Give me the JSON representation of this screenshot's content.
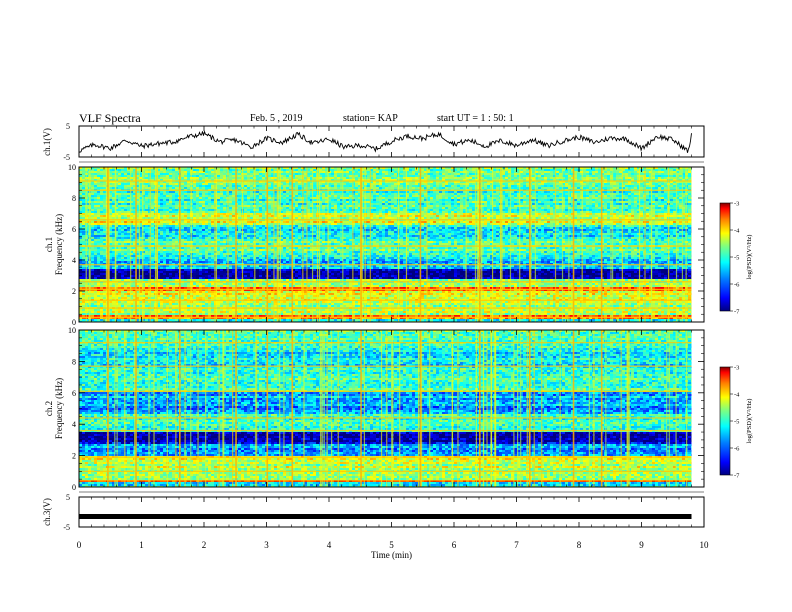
{
  "header": {
    "title": "VLF Spectra",
    "date": "Feb. 5 , 2019",
    "station": "station= KAP",
    "start": "start UT = 1 : 50: 1"
  },
  "colors": {
    "colormap": [
      "#00007f",
      "#0000ff",
      "#007fff",
      "#00ffff",
      "#7fff7f",
      "#ffff00",
      "#ff7f00",
      "#ff0000",
      "#7f0000"
    ],
    "trace": "#000000"
  },
  "chart_data": [
    {
      "type": "line",
      "panel": "ch1-waveform",
      "ylabel": "ch.1(V)",
      "ylim": [
        -5,
        5
      ],
      "yticks": [
        "5",
        "-5"
      ],
      "xlim": [
        0,
        10
      ],
      "series": [
        {
          "x": [
            0,
            0.25,
            0.5,
            0.75,
            1.0,
            1.25,
            1.5,
            1.75,
            2.0,
            2.25,
            2.5,
            2.75,
            3.0,
            3.25,
            3.5,
            3.75,
            4.0,
            4.25,
            4.5,
            4.75,
            5.0,
            5.25,
            5.5,
            5.75,
            6.0,
            6.25,
            6.5,
            6.75,
            7.0,
            7.25,
            7.5,
            7.75,
            8.0,
            8.25,
            8.5,
            8.75,
            9.0,
            9.25,
            9.5,
            9.75,
            9.8
          ],
          "values": [
            -3.0,
            -1.0,
            -2.2,
            0.4,
            -1.5,
            -0.7,
            -0.2,
            1.5,
            2.6,
            -0.1,
            0.5,
            -1.8,
            1.0,
            -0.3,
            2.3,
            -0.6,
            0.8,
            -1.9,
            -1.2,
            -2.4,
            0.1,
            1.8,
            1.0,
            2.4,
            -0.8,
            0.4,
            -1.5,
            0.2,
            -1.3,
            0.6,
            -1.4,
            0.2,
            1.4,
            -0.3,
            1.1,
            0.9,
            -2.3,
            1.7,
            0.6,
            -3.2,
            2.0
          ]
        }
      ]
    },
    {
      "type": "heatmap",
      "panel": "ch1-spectrogram",
      "ylabel": "ch.1\nFrequency (kHz)",
      "ylim": [
        0,
        10
      ],
      "yticks": [
        "0",
        "2",
        "4",
        "6",
        "8",
        "10"
      ],
      "xlim": [
        0,
        9.8
      ],
      "colorbar": {
        "label": "log(PSD)(V²/Hz)",
        "range": [
          -7,
          -3
        ],
        "ticks": [
          "-3",
          "-4",
          "-5",
          "-6",
          "-7"
        ]
      },
      "freq_bands": [
        {
          "f": [
            0.0,
            0.25
          ],
          "level": 0.35
        },
        {
          "f": [
            0.25,
            0.4
          ],
          "level": 0.75
        },
        {
          "f": [
            0.4,
            1.3
          ],
          "level": 0.55
        },
        {
          "f": [
            1.3,
            2.0
          ],
          "level": 0.62
        },
        {
          "f": [
            2.0,
            2.3
          ],
          "level": 0.74
        },
        {
          "f": [
            2.3,
            2.8
          ],
          "level": 0.52
        },
        {
          "f": [
            2.8,
            3.4
          ],
          "level": 0.05
        },
        {
          "f": [
            3.4,
            4.2
          ],
          "level": 0.32
        },
        {
          "f": [
            4.2,
            5.2
          ],
          "level": 0.45
        },
        {
          "f": [
            5.2,
            6.2
          ],
          "level": 0.38
        },
        {
          "f": [
            6.2,
            7.0
          ],
          "level": 0.58
        },
        {
          "f": [
            7.0,
            8.6
          ],
          "level": 0.42
        },
        {
          "f": [
            8.6,
            10.0
          ],
          "level": 0.5
        }
      ],
      "tone_lines_khz": [
        0.3,
        0.9,
        1.4,
        2.1,
        2.6,
        3.7,
        4.9,
        6.6,
        8.5,
        9.1
      ],
      "impulse_times_min": [
        0.45,
        0.9,
        1.6,
        2.5,
        3.0,
        3.4,
        4.5,
        5.45,
        6.4,
        7.2,
        7.9,
        8.35
      ]
    },
    {
      "type": "heatmap",
      "panel": "ch2-spectrogram",
      "ylabel": "ch.2\nFrequency (kHz)",
      "ylim": [
        0,
        10
      ],
      "yticks": [
        "0",
        "2",
        "4",
        "6",
        "8",
        "10"
      ],
      "xlim": [
        0,
        9.8
      ],
      "colorbar": {
        "label": "log(PSD)(V²/Hz)",
        "range": [
          -7,
          -3
        ],
        "ticks": [
          "-3",
          "-4",
          "-5",
          "-6",
          "-7"
        ]
      },
      "freq_bands": [
        {
          "f": [
            0.0,
            0.3
          ],
          "level": 0.4
        },
        {
          "f": [
            0.3,
            0.45
          ],
          "level": 0.85
        },
        {
          "f": [
            0.45,
            1.6
          ],
          "level": 0.55
        },
        {
          "f": [
            1.6,
            2.0
          ],
          "level": 0.62
        },
        {
          "f": [
            2.0,
            2.8
          ],
          "level": 0.3
        },
        {
          "f": [
            2.8,
            3.5
          ],
          "level": 0.08
        },
        {
          "f": [
            3.5,
            4.6
          ],
          "level": 0.45
        },
        {
          "f": [
            4.6,
            6.0
          ],
          "level": 0.3
        },
        {
          "f": [
            6.0,
            7.6
          ],
          "level": 0.42
        },
        {
          "f": [
            7.6,
            8.8
          ],
          "level": 0.35
        },
        {
          "f": [
            8.8,
            10.0
          ],
          "level": 0.45
        }
      ],
      "tone_lines_khz": [
        0.4,
        1.0,
        1.9,
        3.6,
        4.4,
        6.1,
        7.7,
        9.2
      ],
      "impulse_times_min": [
        0.45,
        0.9,
        1.6,
        2.5,
        3.0,
        3.4,
        4.5,
        5.45,
        6.4,
        7.2,
        7.9,
        8.35
      ]
    },
    {
      "type": "line",
      "panel": "ch3-waveform",
      "ylabel": "ch.3(V)",
      "ylim": [
        -5,
        5
      ],
      "yticks": [
        "5",
        "-5"
      ],
      "xlim": [
        0,
        10
      ],
      "xlabel": "Time (min)",
      "xticks": [
        "0",
        "1",
        "2",
        "3",
        "4",
        "5",
        "6",
        "7",
        "8",
        "9",
        "10"
      ],
      "series": [
        {
          "x": [
            0,
            9.8
          ],
          "values": [
            -1.5,
            -1.5
          ]
        }
      ]
    }
  ]
}
